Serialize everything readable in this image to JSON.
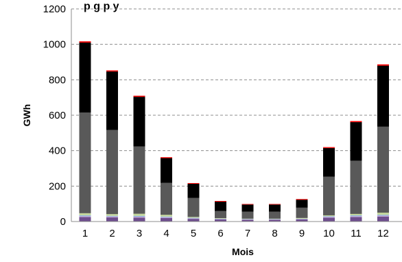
{
  "chart_data": {
    "type": "bar",
    "stacked": true,
    "title": "...sommation régionale par mois...",
    "title_visible_fragment": "p          g  p        y",
    "xlabel": "Mois",
    "ylabel": "GWh",
    "ylim": [
      0,
      1200
    ],
    "yticks": [
      0,
      200,
      400,
      600,
      800,
      1000,
      1200
    ],
    "grid": "horizontal-dashed",
    "categories": [
      "1",
      "2",
      "3",
      "4",
      "5",
      "6",
      "7",
      "8",
      "9",
      "10",
      "11",
      "12"
    ],
    "series": [
      {
        "color": "#6e4e8e",
        "values": [
          25,
          23,
          22,
          20,
          15,
          12,
          10,
          10,
          12,
          22,
          25,
          28
        ]
      },
      {
        "color": "#c0a0d0",
        "values": [
          5,
          5,
          5,
          4,
          3,
          2,
          2,
          2,
          2,
          4,
          5,
          5
        ]
      },
      {
        "color": "#8eb4e3",
        "values": [
          5,
          4,
          5,
          4,
          3,
          2,
          2,
          2,
          2,
          4,
          5,
          5
        ]
      },
      {
        "color": "#c3d69b",
        "values": [
          12,
          10,
          12,
          10,
          5,
          3,
          2,
          2,
          4,
          5,
          8,
          12
        ]
      },
      {
        "color": "#595959",
        "values": [
          568,
          475,
          380,
          180,
          107,
          41,
          40,
          40,
          58,
          218,
          300,
          485
        ]
      },
      {
        "color": "#000000",
        "values": [
          395,
          330,
          280,
          140,
          80,
          52,
          40,
          40,
          45,
          162,
          218,
          345
        ]
      },
      {
        "color": "#ff0000",
        "values": [
          7,
          6,
          6,
          5,
          4,
          4,
          3,
          3,
          4,
          5,
          6,
          7
        ]
      }
    ]
  }
}
